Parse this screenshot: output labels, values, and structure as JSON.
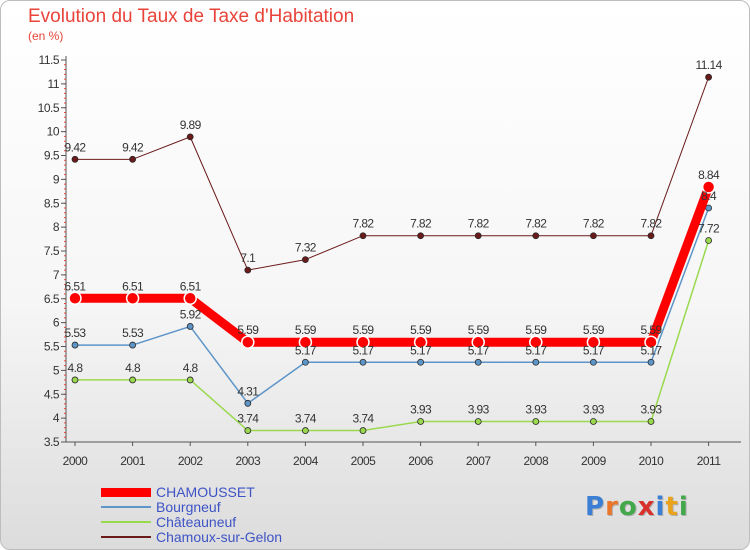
{
  "title": "Evolution du Taux de Taxe d'Habitation",
  "unit_label": "(en %)",
  "logo_text": "Proxiti",
  "logo_colors": [
    "#3a7fd5",
    "#e9762b",
    "#42a84a",
    "#d8312b",
    "#3a7fd5",
    "#e9a21c",
    "#42a84a"
  ],
  "chart_data": {
    "type": "line",
    "title": "Evolution du Taux de Taxe d'Habitation",
    "ylabel": "(en %)",
    "xlabel": "",
    "categories": [
      "2000",
      "2001",
      "2002",
      "2003",
      "2004",
      "2005",
      "2006",
      "2007",
      "2008",
      "2009",
      "2010",
      "2011"
    ],
    "ylim": [
      3.5,
      11.5
    ],
    "yticks": [
      3.5,
      4,
      4.5,
      5,
      5.5,
      6,
      6.5,
      7,
      7.5,
      8,
      8.5,
      9,
      9.5,
      10,
      10.5,
      11,
      11.5
    ],
    "grid": false,
    "legend_position": "bottom-left",
    "series": [
      {
        "name": "Chamoux-sur-Gelon",
        "color": "#6b1a1a",
        "width": 1,
        "marker": 3,
        "values": [
          9.42,
          9.42,
          9.89,
          7.1,
          7.32,
          7.82,
          7.82,
          7.82,
          7.82,
          7.82,
          7.82,
          11.14
        ],
        "labels": [
          "9.42",
          "9.42",
          "9.89",
          "7.1",
          "7.32",
          "7.82",
          "7.82",
          "7.82",
          "7.82",
          "7.82",
          "7.82",
          "11.14"
        ]
      },
      {
        "name": "Châteauneuf",
        "color": "#9ad94e",
        "width": 1.5,
        "marker": 3,
        "values": [
          4.8,
          4.8,
          4.8,
          3.74,
          3.74,
          3.74,
          3.93,
          3.93,
          3.93,
          3.93,
          3.93,
          7.72
        ],
        "labels": [
          "4.8",
          "4.8",
          "4.8",
          "3.74",
          "3.74",
          "3.74",
          "3.93",
          "3.93",
          "3.93",
          "3.93",
          "3.93",
          "7.72"
        ]
      },
      {
        "name": "Bourgneuf",
        "color": "#5d95c8",
        "width": 1.5,
        "marker": 3,
        "values": [
          5.53,
          5.53,
          5.92,
          4.31,
          5.17,
          5.17,
          5.17,
          5.17,
          5.17,
          5.17,
          5.17,
          8.4
        ],
        "labels": [
          "5.53",
          "5.53",
          "5.92",
          "4.31",
          "5.17",
          "5.17",
          "5.17",
          "5.17",
          "5.17",
          "5.17",
          "5.17",
          "8.4"
        ]
      },
      {
        "name": "CHAMOUSSET",
        "color": "#ff0000",
        "width": 9,
        "marker": 6,
        "values": [
          6.51,
          6.51,
          6.51,
          5.59,
          5.59,
          5.59,
          5.59,
          5.59,
          5.59,
          5.59,
          5.59,
          8.84
        ],
        "labels": [
          "6.51",
          "6.51",
          "6.51",
          "5.59",
          "5.59",
          "5.59",
          "5.59",
          "5.59",
          "5.59",
          "5.59",
          "5.59",
          "8.84"
        ]
      }
    ],
    "legend": [
      "CHAMOUSSET",
      "Bourgneuf",
      "Châteauneuf",
      "Chamoux-sur-Gelon"
    ]
  }
}
